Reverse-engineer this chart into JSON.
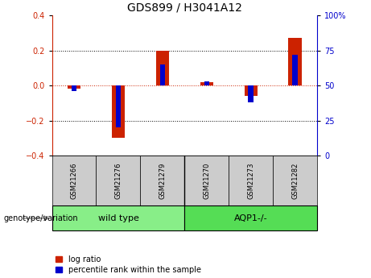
{
  "title": "GDS899 / H3041A12",
  "samples": [
    "GSM21266",
    "GSM21276",
    "GSM21279",
    "GSM21270",
    "GSM21273",
    "GSM21282"
  ],
  "log_ratio": [
    -0.02,
    -0.3,
    0.2,
    0.02,
    -0.06,
    0.27
  ],
  "percentile_rank": [
    46,
    20,
    65,
    53,
    38,
    72
  ],
  "ylim_left": [
    -0.4,
    0.4
  ],
  "ylim_right": [
    0,
    100
  ],
  "yticks_left": [
    -0.4,
    -0.2,
    0.0,
    0.2,
    0.4
  ],
  "yticks_right": [
    0,
    25,
    50,
    75,
    100
  ],
  "ytick_labels_right": [
    "0",
    "25",
    "50",
    "75",
    "100%"
  ],
  "group_divider_idx": 3,
  "log_ratio_color": "#cc2200",
  "percentile_color": "#0000cc",
  "zero_line_color": "#cc2200",
  "dotted_line_color": "#000000",
  "sample_bg_color": "#cccccc",
  "wildtype_color": "#88ee88",
  "aqp1_color": "#55dd55",
  "group_label": "genotype/variation",
  "wildtype_label": "wild type",
  "aqp1_label": "AQP1-/-",
  "legend_lr": "log ratio",
  "legend_pr": "percentile rank within the sample",
  "title_fontsize": 10,
  "tick_fontsize": 7,
  "sample_fontsize": 6,
  "group_fontsize": 8,
  "legend_fontsize": 7,
  "geno_label_fontsize": 7,
  "bar_width": 0.3,
  "blue_bar_width": 0.12
}
